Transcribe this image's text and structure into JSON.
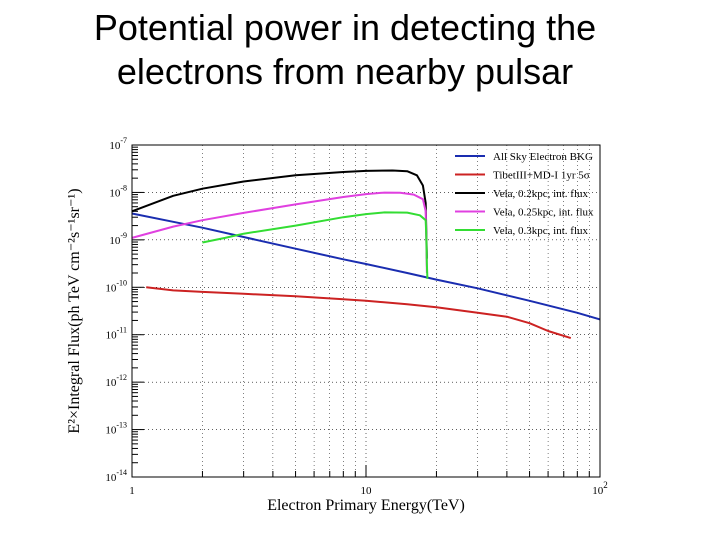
{
  "slide": {
    "title_line1": "Potential power in detecting the",
    "title_line2": "electrons from nearby pulsar"
  },
  "chart_data": {
    "type": "line",
    "xlabel": "Electron Primary Energy(TeV)",
    "ylabel": "E²×Integral Flux(ph TeV cm⁻²s⁻¹sr⁻¹)",
    "x_scale": "log",
    "y_scale": "log",
    "xlim": [
      1,
      100
    ],
    "ylim": [
      1e-14,
      1e-07
    ],
    "grid": true,
    "legend_position": "top-right",
    "x_ticks": [
      {
        "value": 1,
        "base": "1",
        "exp": ""
      },
      {
        "value": 10,
        "base": "10",
        "exp": ""
      },
      {
        "value": 100,
        "base": "10",
        "exp": "2"
      }
    ],
    "y_ticks": [
      {
        "value": 1e-07,
        "base": "10",
        "exp": "-7"
      },
      {
        "value": 1e-08,
        "base": "10",
        "exp": "-8"
      },
      {
        "value": 1e-09,
        "base": "10",
        "exp": "-9"
      },
      {
        "value": 1e-10,
        "base": "10",
        "exp": "-10"
      },
      {
        "value": 1e-11,
        "base": "10",
        "exp": "-11"
      },
      {
        "value": 1e-12,
        "base": "10",
        "exp": "-12"
      },
      {
        "value": 1e-13,
        "base": "10",
        "exp": "-13"
      },
      {
        "value": 1e-14,
        "base": "10",
        "exp": "-14"
      }
    ],
    "series": [
      {
        "name": "All Sky Electron BKG",
        "color": "#1a2db0",
        "points": [
          [
            1,
            3.6e-09
          ],
          [
            1.5,
            2.4e-09
          ],
          [
            2,
            1.8e-09
          ],
          [
            3,
            1.15e-09
          ],
          [
            5,
            6.5e-10
          ],
          [
            8,
            3.9e-10
          ],
          [
            10,
            3.1e-10
          ],
          [
            15,
            2e-10
          ],
          [
            20,
            1.45e-10
          ],
          [
            30,
            9.5e-11
          ],
          [
            50,
            5.2e-11
          ],
          [
            80,
            2.9e-11
          ],
          [
            100,
            2.1e-11
          ]
        ]
      },
      {
        "name": "TibetIII+MD-I 1yr 5σ",
        "color": "#cc2222",
        "points": [
          [
            1.15,
            1e-10
          ],
          [
            1.5,
            8.6e-11
          ],
          [
            2,
            8e-11
          ],
          [
            3,
            7.3e-11
          ],
          [
            5,
            6.5e-11
          ],
          [
            8,
            5.6e-11
          ],
          [
            10,
            5.2e-11
          ],
          [
            15,
            4.4e-11
          ],
          [
            20,
            3.8e-11
          ],
          [
            30,
            2.9e-11
          ],
          [
            40,
            2.4e-11
          ],
          [
            50,
            1.75e-11
          ],
          [
            60,
            1.2e-11
          ],
          [
            75,
            8.5e-12
          ]
        ]
      },
      {
        "name": "Vela, 0.2kpc, int. flux",
        "color": "#000000",
        "points": [
          [
            1,
            4e-09
          ],
          [
            1.5,
            8.5e-09
          ],
          [
            2,
            1.2e-08
          ],
          [
            3,
            1.7e-08
          ],
          [
            5,
            2.3e-08
          ],
          [
            8,
            2.7e-08
          ],
          [
            10,
            2.85e-08
          ],
          [
            13,
            2.9e-08
          ],
          [
            15,
            2.8e-08
          ],
          [
            16.5,
            2.3e-08
          ],
          [
            17.5,
            1.4e-08
          ],
          [
            18,
            6e-09
          ],
          [
            18.1,
            1.5e-09
          ],
          [
            18.2,
            4e-10
          ]
        ]
      },
      {
        "name": "Vela, 0.25kpc, int. flux",
        "color": "#e040e0",
        "points": [
          [
            1,
            1.1e-09
          ],
          [
            1.5,
            1.9e-09
          ],
          [
            2,
            2.6e-09
          ],
          [
            3,
            3.7e-09
          ],
          [
            5,
            5.6e-09
          ],
          [
            8,
            8e-09
          ],
          [
            10,
            9.2e-09
          ],
          [
            12,
            9.9e-09
          ],
          [
            14,
            9.8e-09
          ],
          [
            16,
            9e-09
          ],
          [
            17.5,
            7.2e-09
          ],
          [
            18,
            4e-09
          ],
          [
            18.1,
            1e-09
          ],
          [
            18.2,
            2e-10
          ]
        ]
      },
      {
        "name": "Vela, 0.3kpc, int. flux",
        "color": "#33dd33",
        "points": [
          [
            2,
            8.8e-10
          ],
          [
            2.5,
            1.1e-09
          ],
          [
            3,
            1.35e-09
          ],
          [
            5,
            2e-09
          ],
          [
            8,
            3e-09
          ],
          [
            10,
            3.5e-09
          ],
          [
            12,
            3.8e-09
          ],
          [
            15,
            3.75e-09
          ],
          [
            17,
            3.3e-09
          ],
          [
            18,
            2.6e-09
          ],
          [
            18.1,
            1.2e-09
          ],
          [
            18.2,
            3e-10
          ],
          [
            18.3,
            1.5e-10
          ]
        ]
      }
    ]
  }
}
